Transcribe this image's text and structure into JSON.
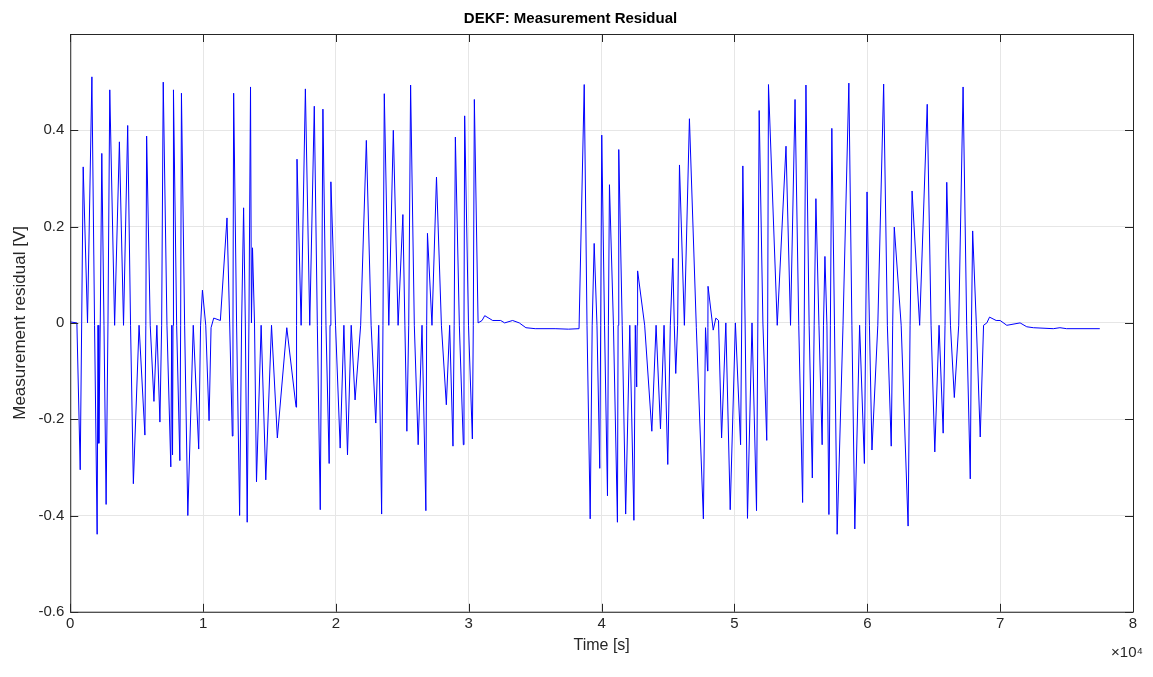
{
  "chart_data": {
    "type": "line",
    "title": "DEKF: Measurement Residual",
    "xlabel": "Time [s]",
    "ylabel": "Measurement residual [V]",
    "annotations": [
      "×10⁴"
    ],
    "xlim": [
      0,
      8
    ],
    "xticks": [
      0,
      1,
      2,
      3,
      4,
      5,
      6,
      7,
      8
    ],
    "ylim": [
      -0.6,
      0.6
    ],
    "yticks": [
      -0.6,
      -0.4,
      -0.2,
      0,
      0.2,
      0.4
    ],
    "grid": true,
    "legend": false,
    "series": [
      {
        "color": "#0000ff",
        "x": [
          0,
          0.05,
          0.075,
          0.086,
          0.0975,
          0.13,
          0.163,
          0.183,
          0.2025,
          0.209,
          0.215,
          0.226,
          0.2375,
          0.254,
          0.27,
          0.284,
          0.2975,
          0.334,
          0.37,
          0.401,
          0.4325,
          0.454,
          0.475,
          0.518,
          0.562,
          0.569,
          0.575,
          0.602,
          0.63,
          0.652,
          0.675,
          0.688,
          0.7,
          0.728,
          0.757,
          0.764,
          0.77,
          0.7735,
          0.777,
          0.801,
          0.825,
          0.831,
          0.837,
          0.861,
          0.885,
          0.926,
          0.967,
          0.981,
          0.995,
          1.02,
          1.045,
          1.06,
          1.08,
          1.13,
          1.18,
          1.2,
          1.22,
          1.225,
          1.23,
          1.252,
          1.275,
          1.29,
          1.305,
          1.318,
          1.332,
          1.345,
          1.357,
          1.364,
          1.372,
          1.387,
          1.402,
          1.437,
          1.472,
          1.515,
          1.559,
          1.63,
          1.7,
          1.7035,
          1.707,
          1.738,
          1.77,
          1.803,
          1.837,
          1.86,
          1.882,
          1.892,
          1.902,
          1.925,
          1.949,
          1.9555,
          1.962,
          1.997,
          2.032,
          2.06,
          2.087,
          2.115,
          2.144,
          2.186,
          2.229,
          2.265,
          2.3,
          2.322,
          2.344,
          2.354,
          2.364,
          2.398,
          2.432,
          2.468,
          2.504,
          2.519,
          2.534,
          2.548,
          2.562,
          2.59,
          2.619,
          2.648,
          2.677,
          2.683,
          2.689,
          2.723,
          2.757,
          2.794,
          2.831,
          2.856,
          2.881,
          2.89,
          2.899,
          2.929,
          2.959,
          2.964,
          2.969,
          2.998,
          3.027,
          3.034,
          3.042,
          3.07,
          3.1,
          3.12,
          3.18,
          3.24,
          3.27,
          3.33,
          3.38,
          3.43,
          3.5,
          3.65,
          3.75,
          3.83,
          3.869,
          3.89,
          3.914,
          3.929,
          3.944,
          3.965,
          3.986,
          3.993,
          4.001,
          4.022,
          4.044,
          4.051,
          4.059,
          4.089,
          4.119,
          4.124,
          4.129,
          4.155,
          4.181,
          4.212,
          4.243,
          4.2535,
          4.264,
          4.2675,
          4.271,
          4.324,
          4.378,
          4.41,
          4.443,
          4.47,
          4.498,
          4.517,
          4.536,
          4.547,
          4.558,
          4.572,
          4.586,
          4.623,
          4.661,
          4.713,
          4.766,
          4.782,
          4.798,
          4.8,
          4.801,
          4.84,
          4.86,
          4.88,
          4.903,
          4.935,
          4.968,
          5.007,
          5.046,
          5.0545,
          5.063,
          5.08,
          5.098,
          5.132,
          5.166,
          5.176,
          5.186,
          5.214,
          5.243,
          5.25,
          5.256,
          5.322,
          5.388,
          5.422,
          5.456,
          5.484,
          5.513,
          5.525,
          5.538,
          5.562,
          5.586,
          5.6,
          5.613,
          5.636,
          5.66,
          5.67,
          5.681,
          5.696,
          5.711,
          5.722,
          5.733,
          5.753,
          5.773,
          5.817,
          5.861,
          5.884,
          5.906,
          5.942,
          5.978,
          5.988,
          5.998,
          6.016,
          6.035,
          6.079,
          6.123,
          6.151,
          6.18,
          6.191,
          6.203,
          6.255,
          6.307,
          6.322,
          6.337,
          6.394,
          6.451,
          6.48,
          6.508,
          6.54,
          6.571,
          6.585,
          6.598,
          6.626,
          6.655,
          6.688,
          6.721,
          6.748,
          6.775,
          6.784,
          6.793,
          6.821,
          6.85,
          6.875,
          6.9,
          6.92,
          6.97,
          7,
          7.05,
          7.15,
          7.2,
          7.25,
          7.4,
          7.45,
          7.5,
          7.75
        ],
        "values": [
          0.002,
          0,
          -0.305,
          0,
          0.324,
          0,
          0.511,
          -0.005,
          -0.439,
          -0.005,
          -0.25,
          0,
          0.352,
          -0.005,
          -0.377,
          0,
          0.484,
          -0.005,
          0.376,
          -0.005,
          0.41,
          -0.005,
          -0.334,
          -0.005,
          -0.233,
          -0.005,
          0.388,
          -0.005,
          -0.163,
          -0.005,
          -0.206,
          -0.005,
          0.5,
          -0.005,
          -0.299,
          -0.005,
          -0.274,
          -0.005,
          0.484,
          -0.005,
          -0.286,
          -0.005,
          0.477,
          -0.005,
          -0.4,
          -0.005,
          -0.262,
          -0.005,
          0.068,
          -0.005,
          -0.203,
          -0.01,
          0.01,
          0.005,
          0.218,
          0,
          -0.235,
          0,
          0.477,
          0,
          -0.4,
          0,
          0.239,
          0,
          -0.414,
          0,
          0.49,
          0,
          0.156,
          0,
          -0.33,
          -0.005,
          -0.326,
          -0.005,
          -0.239,
          -0.01,
          -0.175,
          -0.005,
          0.34,
          -0.005,
          0.486,
          -0.005,
          0.45,
          -0.005,
          -0.388,
          -0.005,
          0.444,
          -0.005,
          -0.292,
          -0.005,
          0.293,
          -0.005,
          -0.26,
          -0.005,
          -0.274,
          -0.005,
          -0.16,
          -0.005,
          0.379,
          -0.005,
          -0.208,
          -0.005,
          -0.397,
          -0.005,
          0.476,
          -0.005,
          0.4,
          -0.005,
          0.225,
          -0.005,
          -0.225,
          -0.005,
          0.494,
          -0.005,
          -0.253,
          -0.005,
          -0.39,
          -0.005,
          0.186,
          -0.005,
          0.303,
          -0.005,
          -0.17,
          -0.005,
          -0.256,
          -0.005,
          0.386,
          -0.005,
          -0.253,
          -0.005,
          0.43,
          -0.005,
          -0.241,
          -0.005,
          0.464,
          0,
          0.005,
          0.015,
          0.005,
          0.005,
          0,
          0.005,
          0,
          -0.01,
          -0.012,
          -0.012,
          -0.013,
          -0.012,
          0.495,
          -0.005,
          -0.407,
          -0.005,
          0.165,
          -0.005,
          -0.302,
          -0.005,
          0.39,
          -0.005,
          -0.359,
          -0.005,
          0.287,
          -0.005,
          -0.414,
          -0.005,
          0.36,
          -0.005,
          -0.397,
          -0.005,
          -0.41,
          -0.005,
          -0.133,
          -0.005,
          0.108,
          -0.005,
          -0.225,
          -0.005,
          -0.22,
          -0.005,
          -0.294,
          -0.005,
          0.134,
          -0.005,
          -0.105,
          -0.005,
          0.328,
          -0.005,
          0.424,
          -0.01,
          -0.407,
          -0.01,
          -0.1,
          -0.01,
          0.076,
          -0.015,
          0.01,
          0.005,
          -0.239,
          0,
          -0.388,
          0,
          -0.253,
          0,
          0.326,
          0,
          -0.406,
          0,
          -0.39,
          0,
          0.441,
          0,
          -0.244,
          0,
          0.495,
          -0.005,
          0.367,
          -0.005,
          0.464,
          -0.005,
          -0.373,
          -0.005,
          0.494,
          -0.005,
          -0.322,
          -0.005,
          0.258,
          -0.005,
          -0.253,
          -0.005,
          0.138,
          -0.005,
          -0.398,
          -0.005,
          0.404,
          -0.005,
          -0.439,
          -0.005,
          0.498,
          -0.005,
          -0.428,
          -0.005,
          -0.292,
          -0.005,
          0.272,
          -0.005,
          -0.264,
          -0.005,
          0.496,
          -0.005,
          -0.256,
          -0.005,
          0.199,
          -0.005,
          -0.422,
          -0.005,
          0.274,
          -0.005,
          0.454,
          -0.005,
          -0.268,
          -0.005,
          -0.229,
          -0.005,
          0.292,
          -0.005,
          -0.155,
          -0.005,
          0.49,
          -0.005,
          -0.324,
          -0.005,
          0.191,
          -0.005,
          -0.237,
          -0.005,
          0,
          0.012,
          0.005,
          0.005,
          -0.005,
          0,
          -0.008,
          -0.01,
          -0.012,
          -0.01,
          -0.012,
          -0.012
        ]
      }
    ]
  }
}
